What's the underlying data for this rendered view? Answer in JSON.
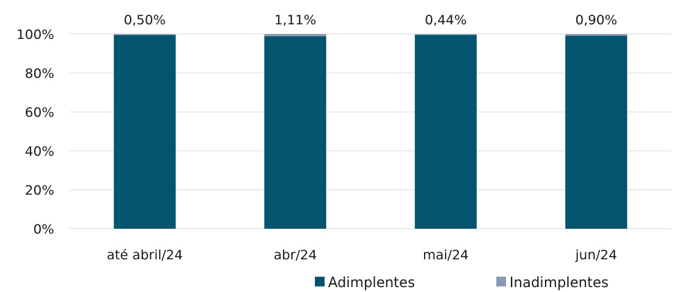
{
  "chart_data": {
    "type": "bar",
    "stacked": true,
    "percent_stacked": true,
    "categories": [
      "até abril/24",
      "abr/24",
      "mai/24",
      "jun/24"
    ],
    "series": [
      {
        "name": "Adimplentes",
        "values": [
          99.5,
          98.89,
          99.56,
          99.1
        ],
        "color": "#03546f"
      },
      {
        "name": "Inadimplentes",
        "values": [
          0.5,
          1.11,
          0.44,
          0.9
        ],
        "color": "#8a9bb1"
      }
    ],
    "data_labels": [
      "0,50%",
      "1,11%",
      "0,44%",
      "0,90%"
    ],
    "y_ticks": [
      "0%",
      "20%",
      "40%",
      "60%",
      "80%",
      "100%"
    ],
    "ylim": [
      0,
      100
    ],
    "grid": true,
    "legend": "bottom",
    "title": "",
    "xlabel": "",
    "ylabel": ""
  }
}
